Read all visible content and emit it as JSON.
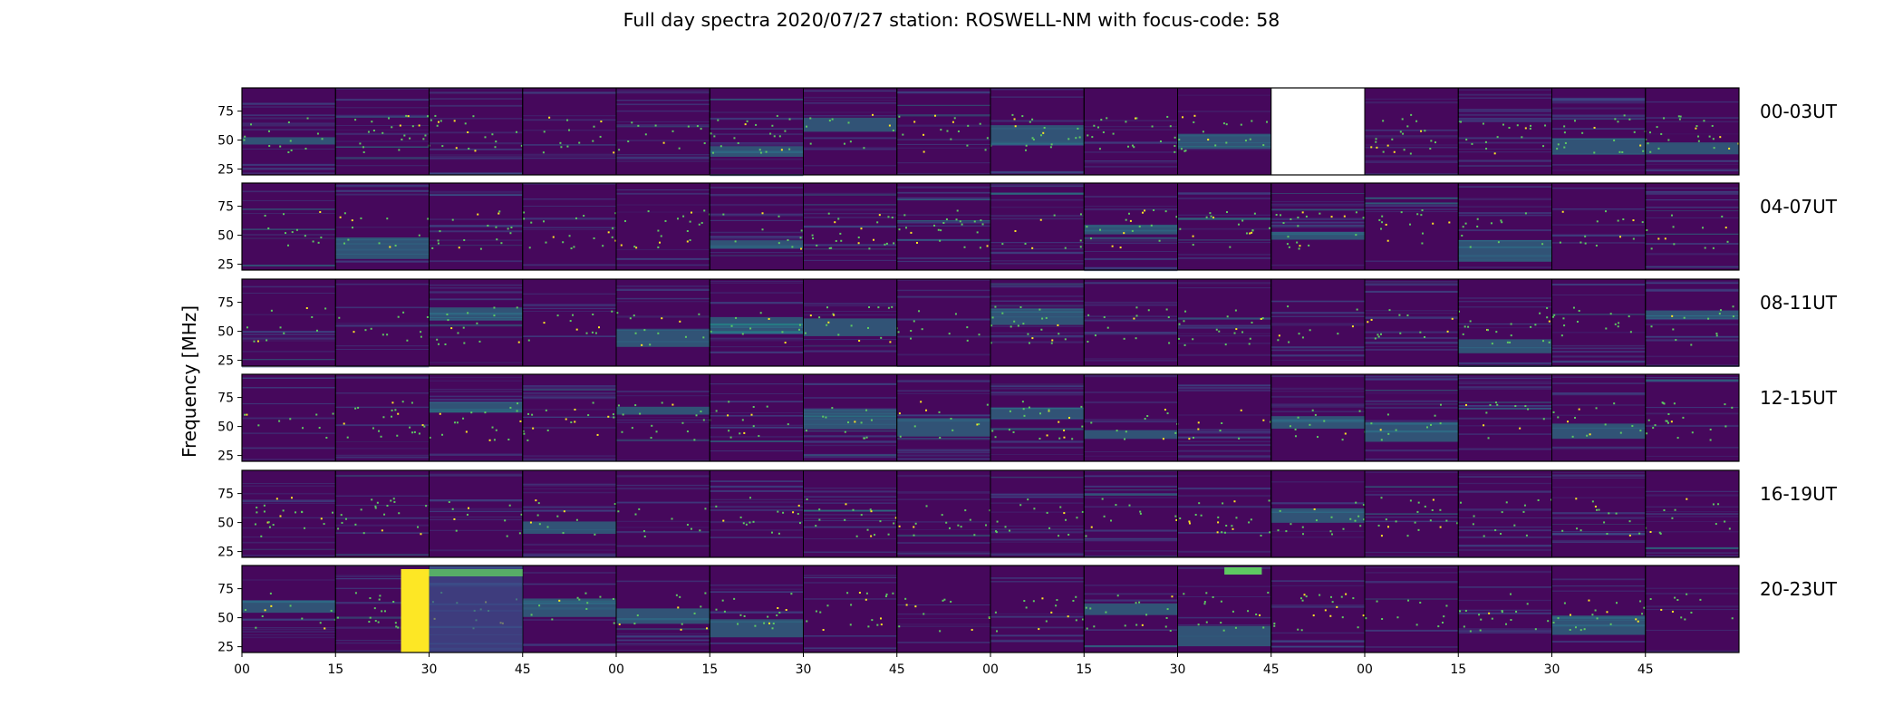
{
  "chart_data": {
    "type": "heatmap",
    "title": "Full day spectra 2020/07/27 station: ROSWELL-NM with focus-code: 58",
    "ylabel": "Frequency [MHz]",
    "xlabel": "",
    "y_ticks": [
      25,
      50,
      75
    ],
    "ylim": [
      20,
      95
    ],
    "x_ticks": [
      "00",
      "15",
      "30",
      "45",
      "00",
      "15",
      "30",
      "45",
      "00",
      "15",
      "30",
      "45",
      "00",
      "15",
      "30",
      "45"
    ],
    "colormap": "viridis",
    "rows": [
      {
        "label": "00-03UT",
        "missing_panels": [
          11
        ]
      },
      {
        "label": "04-07UT",
        "missing_panels": []
      },
      {
        "label": "08-11UT",
        "missing_panels": []
      },
      {
        "label": "12-15UT",
        "missing_panels": []
      },
      {
        "label": "16-19UT",
        "missing_panels": []
      },
      {
        "label": "20-23UT",
        "missing_panels": []
      }
    ],
    "colors": {
      "background": "#46085c",
      "low": "#440154",
      "mid": "#3b528b",
      "teal": "#21918c",
      "green": "#5ec962",
      "high": "#fde725",
      "missing": "#ffffff"
    }
  }
}
